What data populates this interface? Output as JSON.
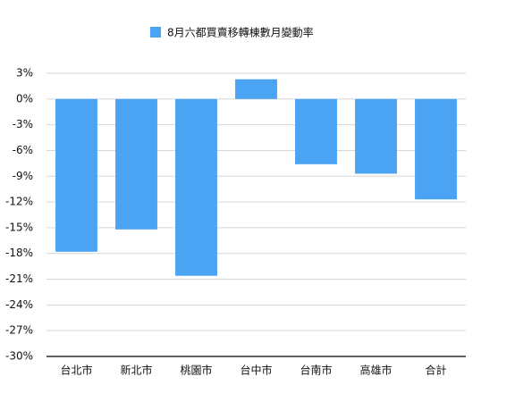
{
  "chart_data": {
    "type": "bar",
    "categories": [
      "台北市",
      "新北市",
      "桃園市",
      "台中市",
      "台南市",
      "高雄市",
      "合計"
    ],
    "series": [
      {
        "name": "8月六都買賣移轉棟數月變動率",
        "color": "#4ba3f4",
        "values": [
          -17.8,
          -15.2,
          -20.6,
          2.3,
          -7.6,
          -8.7,
          -11.7
        ]
      }
    ],
    "ylim": [
      -30,
      3
    ],
    "yticks": [
      {
        "value": 3,
        "label": "3%"
      },
      {
        "value": 0,
        "label": "0%"
      },
      {
        "value": -3,
        "label": "-3%"
      },
      {
        "value": -6,
        "label": "-6%"
      },
      {
        "value": -9,
        "label": "-9%"
      },
      {
        "value": -12,
        "label": "-12%"
      },
      {
        "value": -15,
        "label": "-15%"
      },
      {
        "value": -18,
        "label": "-18%"
      },
      {
        "value": -21,
        "label": "-21%"
      },
      {
        "value": -24,
        "label": "-24%"
      },
      {
        "value": -27,
        "label": "-27%"
      },
      {
        "value": -30,
        "label": "-30%"
      }
    ],
    "grid": true
  }
}
